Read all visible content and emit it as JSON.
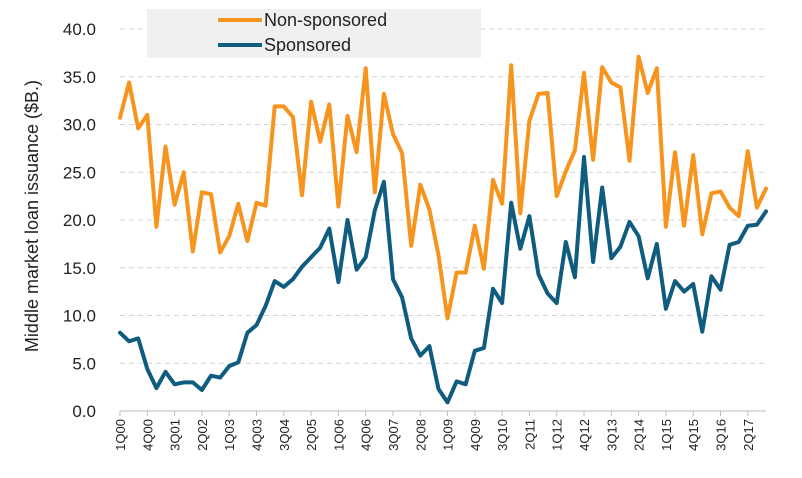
{
  "chart_data": {
    "type": "line",
    "ylabel": "Middle market loan issuance ($B.)",
    "ylim": [
      0,
      40
    ],
    "yticks": [
      "0.0",
      "5.0",
      "10.0",
      "15.0",
      "20.0",
      "25.0",
      "30.0",
      "35.0",
      "40.0"
    ],
    "grid": "horizontal-dashed",
    "legend": "top-left",
    "x": [
      "1Q00",
      "2Q00",
      "3Q00",
      "4Q00",
      "1Q01",
      "2Q01",
      "3Q01",
      "4Q01",
      "1Q02",
      "2Q02",
      "3Q02",
      "4Q02",
      "1Q03",
      "2Q03",
      "3Q03",
      "4Q03",
      "1Q04",
      "2Q04",
      "3Q04",
      "4Q04",
      "1Q05",
      "2Q05",
      "3Q05",
      "4Q05",
      "1Q06",
      "2Q06",
      "3Q06",
      "4Q06",
      "1Q07",
      "2Q07",
      "3Q07",
      "4Q07",
      "1Q08",
      "2Q08",
      "3Q08",
      "4Q08",
      "1Q09",
      "2Q09",
      "3Q09",
      "4Q09",
      "1Q10",
      "2Q10",
      "3Q10",
      "4Q10",
      "1Q11",
      "2Q11",
      "3Q11",
      "4Q11",
      "1Q12",
      "2Q12",
      "3Q12",
      "4Q12",
      "1Q13",
      "2Q13",
      "3Q13",
      "4Q13",
      "1Q14",
      "2Q14",
      "3Q14",
      "4Q14",
      "1Q15",
      "2Q15",
      "3Q15",
      "4Q15",
      "1Q16",
      "2Q16",
      "3Q16",
      "4Q16",
      "1Q17",
      "2Q17",
      "3Q17",
      "4Q17"
    ],
    "xtick_labels": [
      "1Q00",
      "4Q00",
      "3Q01",
      "2Q02",
      "1Q03",
      "4Q03",
      "3Q04",
      "2Q05",
      "1Q06",
      "4Q06",
      "3Q07",
      "2Q08",
      "1Q09",
      "4Q09",
      "3Q10",
      "2Q11",
      "1Q12",
      "4Q12",
      "3Q13",
      "2Q14",
      "1Q15",
      "4Q15",
      "3Q16",
      "2Q17"
    ],
    "series": [
      {
        "name": "Non-sponsored",
        "color": "#F7941D",
        "values": [
          30.7,
          34.4,
          29.6,
          31.0,
          19.3,
          27.7,
          21.6,
          25.0,
          16.7,
          22.9,
          22.7,
          16.6,
          18.3,
          21.7,
          17.8,
          21.8,
          21.5,
          31.9,
          31.9,
          30.8,
          22.6,
          32.4,
          28.2,
          32.1,
          21.4,
          30.9,
          27.1,
          35.9,
          22.9,
          33.2,
          29.0,
          27.0,
          17.3,
          23.7,
          21.1,
          16.3,
          9.7,
          14.5,
          14.5,
          19.4,
          14.9,
          24.2,
          21.7,
          36.2,
          20.7,
          30.4,
          33.2,
          33.3,
          22.5,
          25.1,
          27.3,
          35.4,
          26.3,
          36.0,
          34.4,
          33.9,
          26.2,
          37.1,
          33.3,
          35.9,
          19.3,
          27.1,
          19.4,
          26.8,
          18.5,
          22.8,
          23.0,
          21.3,
          20.4,
          27.2,
          21.3,
          23.3
        ]
      },
      {
        "name": "Sponsored",
        "color": "#0F5C7F",
        "values": [
          8.2,
          7.3,
          7.6,
          4.4,
          2.4,
          4.1,
          2.8,
          3.0,
          3.0,
          2.2,
          3.7,
          3.5,
          4.7,
          5.1,
          8.2,
          9.0,
          11.0,
          13.6,
          13.0,
          13.8,
          15.1,
          16.1,
          17.1,
          19.1,
          13.5,
          20.0,
          14.8,
          16.1,
          21.0,
          24.0,
          13.8,
          11.9,
          7.6,
          5.8,
          6.8,
          2.3,
          0.9,
          3.1,
          2.8,
          6.3,
          6.6,
          12.8,
          11.3,
          21.8,
          17.0,
          20.4,
          14.3,
          12.3,
          11.3,
          17.7,
          14.0,
          26.6,
          15.6,
          23.4,
          16.0,
          17.2,
          19.8,
          18.3,
          13.9,
          17.5,
          10.7,
          13.6,
          12.5,
          13.3,
          8.3,
          14.1,
          12.7,
          17.4,
          17.7,
          19.4,
          19.5,
          20.9
        ]
      }
    ]
  }
}
